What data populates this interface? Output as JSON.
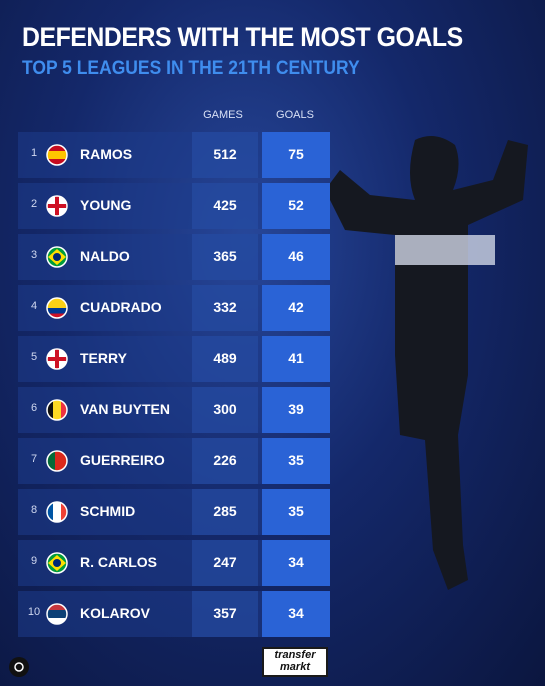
{
  "header": {
    "title": "DEFENDERS WITH THE MOST GOALS",
    "subtitle": "TOP 5 LEAGUES IN THE 21TH CENTURY"
  },
  "table": {
    "columns": [
      "GAMES",
      "GOALS"
    ],
    "rows": [
      [
        1,
        "RAMOS",
        512,
        75
      ],
      [
        2,
        "YOUNG",
        425,
        52
      ],
      [
        3,
        "NALDO",
        365,
        46
      ],
      [
        4,
        "CUADRADO",
        332,
        42
      ],
      [
        5,
        "TERRY",
        489,
        41
      ],
      [
        6,
        "VAN BUYTEN",
        300,
        39
      ],
      [
        7,
        "GUERREIRO",
        226,
        35
      ],
      [
        8,
        "SCHMID",
        285,
        35
      ],
      [
        9,
        "R. CARLOS",
        247,
        34
      ],
      [
        10,
        "KOLAROV",
        357,
        34
      ]
    ]
  },
  "footer": {
    "logo_top": "transfer",
    "logo_bottom": "markt"
  }
}
